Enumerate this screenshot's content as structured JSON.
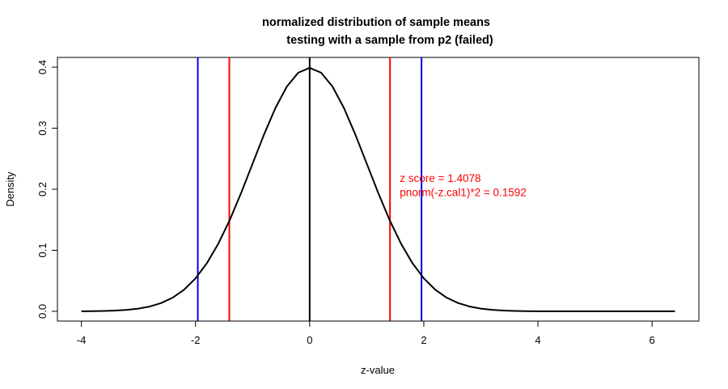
{
  "chart_data": {
    "type": "line",
    "title": "normalized distribution of sample means",
    "subtitle": "testing with a sample from p2 (failed)",
    "xlabel": "z-value",
    "ylabel": "Density",
    "xlim": [
      -4.42,
      6.82
    ],
    "ylim": [
      -0.016,
      0.416
    ],
    "x_ticks": [
      -4,
      -2,
      0,
      2,
      4,
      6
    ],
    "y_ticks": [
      0.0,
      0.1,
      0.2,
      0.3,
      0.4
    ],
    "x_tick_labels": [
      "-4",
      "-2",
      "0",
      "2",
      "4",
      "6"
    ],
    "y_tick_labels": [
      "0.0",
      "0.1",
      "0.2",
      "0.3",
      "0.4"
    ],
    "grid": false,
    "series": [
      {
        "color": "#000000",
        "x": [
          -4.0,
          -3.8,
          -3.6,
          -3.4,
          -3.2,
          -3.0,
          -2.8,
          -2.6,
          -2.4,
          -2.2,
          -2.0,
          -1.8,
          -1.6,
          -1.4,
          -1.2,
          -1.0,
          -0.8,
          -0.6,
          -0.4,
          -0.2,
          0.0,
          0.2,
          0.4,
          0.6,
          0.8,
          1.0,
          1.2,
          1.4,
          1.6,
          1.8,
          2.0,
          2.2,
          2.4,
          2.6,
          2.8,
          3.0,
          3.2,
          3.4,
          3.6,
          3.8,
          4.0,
          4.4,
          4.8,
          5.2,
          5.6,
          6.0,
          6.4
        ],
        "values": [
          0.0001,
          0.0003,
          0.0006,
          0.0012,
          0.0024,
          0.0044,
          0.0079,
          0.0136,
          0.0224,
          0.0355,
          0.054,
          0.079,
          0.1109,
          0.1497,
          0.1942,
          0.242,
          0.2897,
          0.3332,
          0.3683,
          0.391,
          0.3989,
          0.391,
          0.3683,
          0.3332,
          0.2897,
          0.242,
          0.1942,
          0.1497,
          0.1109,
          0.079,
          0.054,
          0.0355,
          0.0224,
          0.0136,
          0.0079,
          0.0044,
          0.0024,
          0.0012,
          0.0006,
          0.0003,
          0.0001,
          0.0,
          0.0,
          0.0,
          0.0,
          0.0,
          0.0
        ]
      }
    ],
    "vertical_lines": [
      {
        "x": -1.96,
        "color": "#0000ff"
      },
      {
        "x": 1.96,
        "color": "#0000ff"
      },
      {
        "x": -1.4078,
        "color": "#ff0000"
      },
      {
        "x": 1.4078,
        "color": "#ff0000"
      },
      {
        "x": 0,
        "color": "#000000"
      }
    ],
    "annotations": [
      {
        "text": "z score = 1.4078",
        "x": 1.58,
        "y": 0.212,
        "color": "#ff0000"
      },
      {
        "text": "pnorm(-z.cal1)*2 = 0.1592",
        "x": 1.58,
        "y": 0.189,
        "color": "#ff0000"
      }
    ]
  }
}
